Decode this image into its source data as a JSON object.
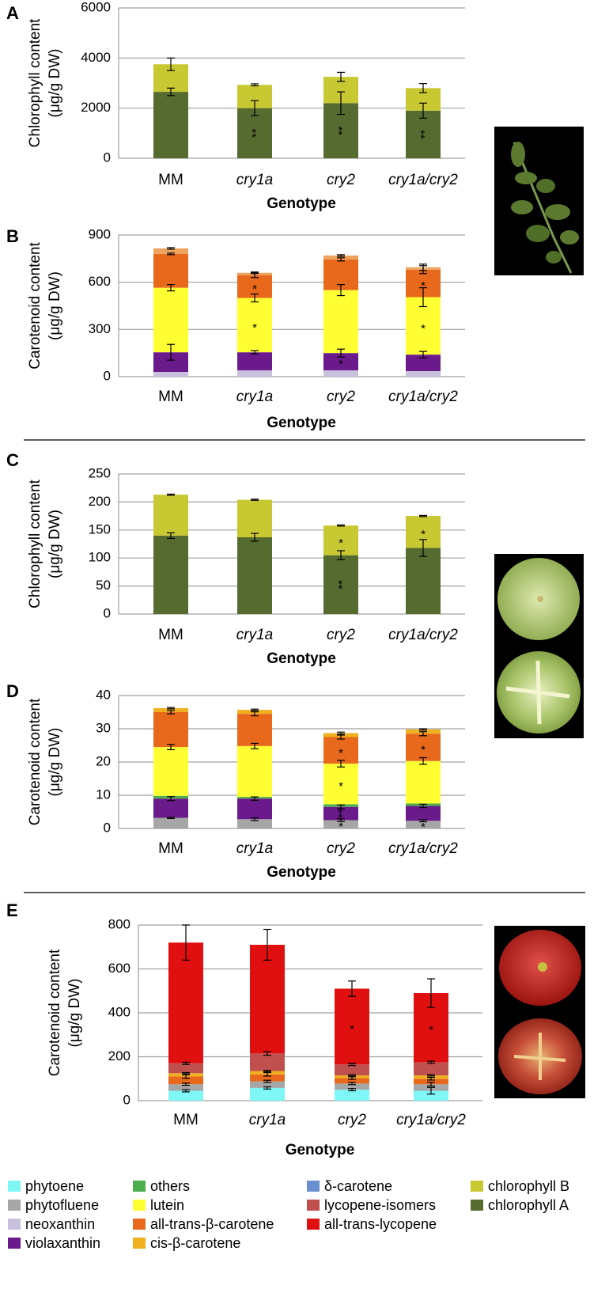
{
  "chart_data": [
    {
      "type": "bar",
      "stacked": true,
      "panel": "A",
      "ylabel": [
        "Chlorophyll content",
        "(μg/g DW)"
      ],
      "xlabel": "Genotype",
      "categories": [
        "MM",
        "cry1a",
        "cry2",
        "cry1a/cry2"
      ],
      "ylim": [
        0,
        6000
      ],
      "yticks": [
        0,
        2000,
        4000,
        6000
      ],
      "grid": true,
      "series": [
        {
          "name": "chlorophyll A",
          "color": "#566b30",
          "values": [
            2650,
            2000,
            2200,
            1900
          ],
          "errors": [
            150,
            300,
            450,
            300
          ],
          "significance": [
            null,
            "**",
            "**",
            "**"
          ]
        },
        {
          "name": "chlorophyll B",
          "color": "#c8c832",
          "values": [
            1100,
            930,
            1050,
            900
          ],
          "errors": [
            250,
            40,
            180,
            180
          ],
          "significance": [
            null,
            null,
            null,
            null
          ]
        }
      ]
    },
    {
      "type": "bar",
      "stacked": true,
      "panel": "B",
      "ylabel": [
        "Carotenoid content",
        "(μg/g DW)"
      ],
      "xlabel": "Genotype",
      "categories": [
        "MM",
        "cry1a",
        "cry2",
        "cry1a/cry2"
      ],
      "ylim": [
        0,
        900
      ],
      "yticks": [
        0,
        300,
        600,
        900
      ],
      "grid": true,
      "series": [
        {
          "name": "neoxanthin",
          "color": "#c8c0dc",
          "values": [
            30,
            40,
            40,
            35
          ],
          "errors": [
            0,
            0,
            0,
            0
          ],
          "significance": [
            null,
            null,
            null,
            null
          ]
        },
        {
          "name": "violaxanthin",
          "color": "#6a1a8a",
          "values": [
            125,
            115,
            110,
            105
          ],
          "errors": [
            50,
            10,
            25,
            20
          ],
          "significance": [
            null,
            null,
            "*",
            null
          ]
        },
        {
          "name": "lutein",
          "color": "#ffff33",
          "values": [
            410,
            345,
            400,
            365
          ],
          "errors": [
            20,
            25,
            35,
            60
          ],
          "significance": [
            null,
            "*",
            null,
            "*"
          ]
        },
        {
          "name": "all-trans-β-carotene",
          "color": "#e8691c",
          "values": [
            215,
            145,
            195,
            175
          ],
          "errors": [
            5,
            15,
            10,
            25
          ],
          "significance": [
            null,
            "*",
            null,
            "*"
          ]
        },
        {
          "name": "cis-β-carotene",
          "color": "#eda35e",
          "values": [
            35,
            15,
            25,
            15
          ],
          "errors": [
            5,
            5,
            5,
            20
          ],
          "significance": [
            null,
            null,
            null,
            null
          ]
        }
      ]
    },
    {
      "type": "bar",
      "stacked": true,
      "panel": "C",
      "ylabel": [
        "Chlorophyll content",
        "(μg/g DW)"
      ],
      "xlabel": "Genotype",
      "categories": [
        "MM",
        "cry1a",
        "cry2",
        "cry1a/cry2"
      ],
      "ylim": [
        0,
        250
      ],
      "yticks": [
        0,
        50,
        100,
        150,
        200,
        250
      ],
      "grid": true,
      "series": [
        {
          "name": "chlorophyll A",
          "color": "#566b30",
          "values": [
            140,
            137,
            105,
            118
          ],
          "errors": [
            5,
            7,
            8,
            15
          ],
          "significance": [
            null,
            null,
            "**",
            null
          ]
        },
        {
          "name": "chlorophyll B",
          "color": "#c8c832",
          "values": [
            73,
            67,
            53,
            57
          ],
          "errors": [
            1,
            1,
            1,
            1
          ],
          "significance": [
            null,
            null,
            "*",
            "*"
          ]
        }
      ]
    },
    {
      "type": "bar",
      "stacked": true,
      "panel": "D",
      "ylabel": [
        "Carotenoid content",
        "(μg/g DW)"
      ],
      "xlabel": "Genotype",
      "categories": [
        "MM",
        "cry1a",
        "cry2",
        "cry1a/cry2"
      ],
      "ylim": [
        0,
        40
      ],
      "yticks": [
        0,
        10,
        20,
        30,
        40
      ],
      "grid": true,
      "series": [
        {
          "name": "phytofluene",
          "color": "#a6a6a6",
          "values": [
            3.2,
            2.8,
            2.5,
            2.3
          ],
          "errors": [
            0.2,
            0.4,
            0.4,
            0.3
          ],
          "significance": [
            null,
            null,
            "*",
            "*"
          ]
        },
        {
          "name": "violaxanthin",
          "color": "#6a1a8a",
          "values": [
            5.8,
            6.2,
            4,
            4.5
          ],
          "errors": [
            0.6,
            0.5,
            0.6,
            0.5
          ],
          "significance": [
            null,
            null,
            "**",
            null
          ]
        },
        {
          "name": "others",
          "color": "#4cae4c",
          "values": [
            0.8,
            0.5,
            0.8,
            0.7
          ],
          "errors": [
            0,
            0,
            0,
            0
          ],
          "significance": [
            null,
            null,
            null,
            null
          ]
        },
        {
          "name": "lutein",
          "color": "#ffff33",
          "values": [
            14.7,
            15.3,
            12.2,
            12.8
          ],
          "errors": [
            0.8,
            0.8,
            1,
            1
          ],
          "significance": [
            null,
            null,
            "*",
            null
          ]
        },
        {
          "name": "all-trans-β-carotene",
          "color": "#e8691c",
          "values": [
            10.5,
            9.7,
            8,
            8.2
          ],
          "errors": [
            0.5,
            0.6,
            0.6,
            0.6
          ],
          "significance": [
            null,
            null,
            "*",
            "*"
          ]
        },
        {
          "name": "cis-β-carotene",
          "color": "#f0b020",
          "values": [
            1.2,
            1.2,
            1.2,
            1.3
          ],
          "errors": [
            0.2,
            0.2,
            0.3,
            0.2
          ],
          "significance": [
            null,
            null,
            null,
            null
          ]
        }
      ]
    },
    {
      "type": "bar",
      "stacked": true,
      "panel": "E",
      "ylabel": [
        "Carotenoid content",
        "(μg/g DW)"
      ],
      "xlabel": "Genotype",
      "categories": [
        "MM",
        "cry1a",
        "cry2",
        "cry1a/cry2"
      ],
      "ylim": [
        0,
        800
      ],
      "yticks": [
        0,
        200,
        400,
        600,
        800
      ],
      "grid": true,
      "series": [
        {
          "name": "phytoene",
          "color": "#7ff7f7",
          "values": [
            45,
            58,
            50,
            45
          ],
          "errors": [
            5,
            5,
            5,
            15
          ],
          "significance": [
            null,
            null,
            null,
            null
          ]
        },
        {
          "name": "phytofluene",
          "color": "#a6a6a6",
          "values": [
            30,
            30,
            28,
            30
          ],
          "errors": [
            5,
            5,
            5,
            8
          ],
          "significance": [
            null,
            null,
            null,
            null
          ]
        },
        {
          "name": "all-trans-β-carotene",
          "color": "#e8691c",
          "values": [
            35,
            32,
            25,
            25
          ],
          "errors": [
            8,
            8,
            6,
            6
          ],
          "significance": [
            null,
            null,
            null,
            null
          ]
        },
        {
          "name": "cis-β-carotene",
          "color": "#f0b020",
          "values": [
            15,
            15,
            12,
            15
          ],
          "errors": [
            3,
            3,
            3,
            3
          ],
          "significance": [
            null,
            null,
            null,
            null
          ]
        },
        {
          "name": "lycopene-isomers",
          "color": "#c0504d",
          "values": [
            45,
            80,
            50,
            60
          ],
          "errors": [
            5,
            8,
            5,
            5
          ],
          "significance": [
            null,
            null,
            null,
            null
          ]
        },
        {
          "name": "all-trans-lycopene",
          "color": "#e01010",
          "values": [
            550,
            495,
            345,
            315
          ],
          "errors": [
            80,
            70,
            35,
            65
          ],
          "significance": [
            null,
            null,
            "*",
            "*"
          ]
        }
      ]
    }
  ],
  "legend": [
    {
      "name": "phytoene",
      "color": "#7ff7f7"
    },
    {
      "name": "phytofluene",
      "color": "#a6a6a6"
    },
    {
      "name": "neoxanthin",
      "color": "#c8c0dc"
    },
    {
      "name": "violaxanthin",
      "color": "#6a1a8a"
    },
    {
      "name": "others",
      "color": "#4cae4c"
    },
    {
      "name": "lutein",
      "color": "#ffff33"
    },
    {
      "name": "all-trans-β-carotene",
      "color": "#e8691c"
    },
    {
      "name": "cis-β-carotene",
      "color": "#f0b020"
    },
    {
      "name": "δ-carotene",
      "color": "#6a8fce"
    },
    {
      "name": "lycopene-isomers",
      "color": "#c0504d"
    },
    {
      "name": "all-trans-lycopene",
      "color": "#e01010"
    },
    {
      "name": "chlorophyll B",
      "color": "#c8c832"
    },
    {
      "name": "chlorophyll A",
      "color": "#566b30"
    }
  ]
}
